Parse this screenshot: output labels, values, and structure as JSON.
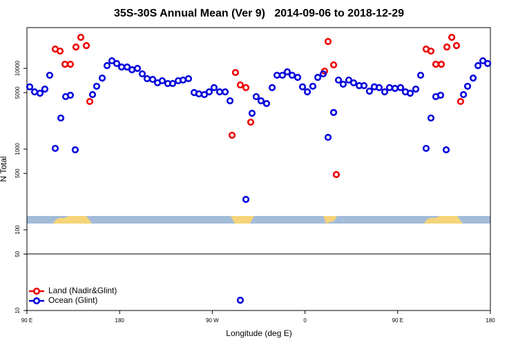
{
  "chart_data": {
    "type": "scatter",
    "title": "35S-30S Annual Mean (Ver 9)   2014-09-06 to 2018-12-29",
    "xlabel": "Longitude (deg E)",
    "ylabel": "N Total",
    "xlim": [
      90,
      540
    ],
    "xticks": [
      {
        "value": 90,
        "label": "90 E"
      },
      {
        "value": 180,
        "label": "180"
      },
      {
        "value": 270,
        "label": "90 W"
      },
      {
        "value": 360,
        "label": "0"
      },
      {
        "value": 450,
        "label": "90 E"
      },
      {
        "value": 540,
        "label": "180"
      }
    ],
    "ylim": [
      10,
      32000
    ],
    "yscale": "log",
    "yticks": [
      10,
      50,
      100,
      500,
      1000,
      5000,
      10000
    ],
    "legend": "lower left",
    "series": [
      {
        "name": "Land (Nadir&Glint)",
        "color": "#ee0000",
        "x": [
          117.5,
          122.2,
          126.9,
          132.2,
          137.6,
          142.3,
          147.7,
          151.0,
          289.2,
          292.5,
          297.2,
          302.6,
          307.3,
          379.0,
          382.4,
          387.8,
          390.4,
          477.6,
          482.3,
          487.0,
          492.4,
          497.8,
          502.5,
          507.1,
          511.1
        ],
        "values": [
          17350,
          16370,
          11250,
          11250,
          18400,
          24250,
          19150,
          3890,
          1483,
          8890,
          6235,
          5770,
          2155,
          9245,
          21550,
          11040,
          483,
          17350,
          16370,
          11250,
          11250,
          18400,
          24250,
          19150,
          3890
        ]
      },
      {
        "name": "Ocean (Glint)",
        "color": "#0000dd",
        "x": [
          92.7,
          97.4,
          102.7,
          107.4,
          112.1,
          117.5,
          122.9,
          127.6,
          132.2,
          136.9,
          153.7,
          157.7,
          163.1,
          167.8,
          172.5,
          177.2,
          181.9,
          187.3,
          192.0,
          197.3,
          202.0,
          206.7,
          212.1,
          216.8,
          221.4,
          226.8,
          231.5,
          236.9,
          241.6,
          246.9,
          252.3,
          257.0,
          262.3,
          267.0,
          271.7,
          277.1,
          282.5,
          287.2,
          297.2,
          302.6,
          308.6,
          312.6,
          317.3,
          322.7,
          328.1,
          332.8,
          338.1,
          342.8,
          347.5,
          352.9,
          357.6,
          362.3,
          367.6,
          372.4,
          377.7,
          382.4,
          387.8,
          392.5,
          397.1,
          402.5,
          407.2,
          412.6,
          417.3,
          422.6,
          427.3,
          432.0,
          437.4,
          442.1,
          447.4,
          452.8,
          457.5,
          462.2,
          467.6,
          472.3,
          477.6,
          482.3,
          487.0,
          491.7,
          497.1,
          513.9,
          517.9,
          523.3,
          528.0,
          532.7,
          537.4
        ],
        "values": [
          5900,
          5120,
          4920,
          5540,
          8220,
          1020,
          2425,
          4465,
          4645,
          980,
          4735,
          6000,
          7590,
          10820,
          12420,
          11480,
          10400,
          10400,
          9610,
          10000,
          8550,
          7450,
          7300,
          6620,
          7020,
          6490,
          6490,
          7020,
          7160,
          7450,
          5020,
          4830,
          4735,
          5120,
          5770,
          5120,
          5120,
          3965,
          13.4,
          238,
          2780,
          4465,
          3965,
          3665,
          5770,
          8220,
          8220,
          9060,
          8220,
          7740,
          5900,
          5120,
          6000,
          7740,
          8550,
          1397,
          2840,
          7160,
          6360,
          7160,
          6620,
          6110,
          6110,
          5220,
          5900,
          5770,
          5120,
          5770,
          5650,
          5770,
          5120,
          4920,
          5540,
          8220,
          1020,
          2425,
          4465,
          4645,
          980,
          4735,
          6000,
          7590,
          10820,
          12420,
          11480
        ]
      }
    ]
  }
}
